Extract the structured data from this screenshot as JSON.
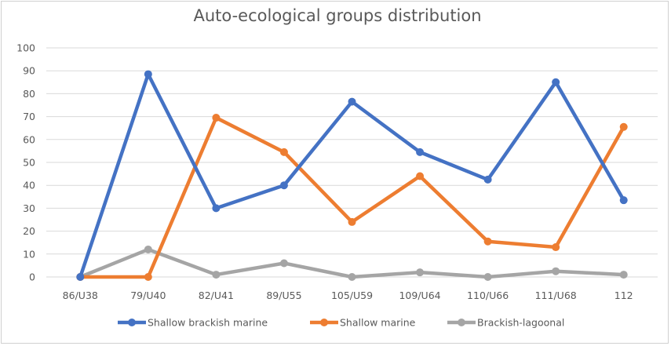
{
  "chart_data": {
    "type": "line",
    "title": "Auto-ecological groups distribution",
    "xlabel": "",
    "ylabel": "",
    "categories": [
      "86/U38",
      "79/U40",
      "82/U41",
      "89/U55",
      "105/U59",
      "109/U64",
      "110/U66",
      "111/U68",
      "112"
    ],
    "ylim": [
      0,
      100
    ],
    "yticks": [
      0,
      10,
      20,
      30,
      40,
      50,
      60,
      70,
      80,
      90,
      100
    ],
    "grid": true,
    "legend_position": "bottom",
    "series": [
      {
        "name": "Shallow brackish marine",
        "color": "#4472c4",
        "values": [
          0,
          88.5,
          30,
          40,
          76.5,
          54.5,
          42.5,
          85,
          33.5
        ]
      },
      {
        "name": "Shallow marine",
        "color": "#ed7d31",
        "values": [
          0,
          0,
          69.5,
          54.5,
          24,
          44,
          15.5,
          13,
          65.5
        ]
      },
      {
        "name": "Brackish-lagoonal",
        "color": "#a5a5a5",
        "values": [
          0,
          12,
          1,
          6,
          0,
          2,
          0,
          2.5,
          1
        ]
      }
    ]
  }
}
